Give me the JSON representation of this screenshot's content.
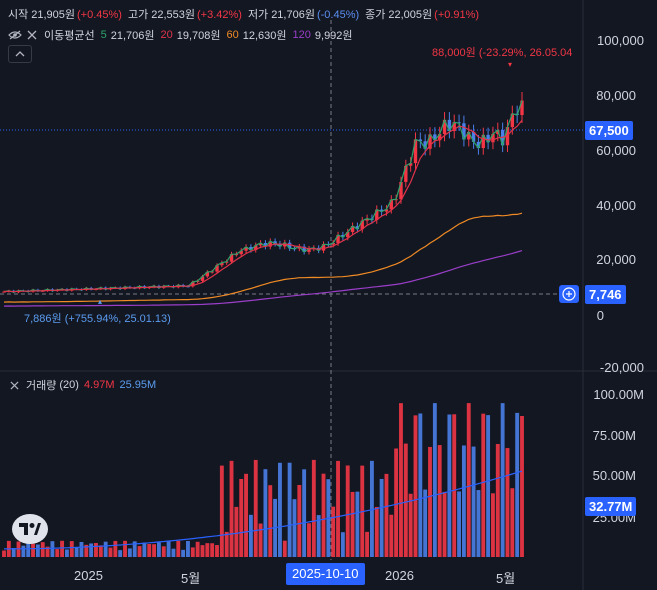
{
  "ohlc": {
    "open_label": "시작",
    "open": "21,905원",
    "open_chg": "(+0.45%)",
    "high_label": "고가",
    "high": "22,553원",
    "high_chg": "(+3.42%)",
    "low_label": "저가",
    "low": "21,706원",
    "low_chg": "(-0.45%)",
    "close_label": "종가",
    "close": "22,005원",
    "close_chg": "(+0.91%)"
  },
  "ma": {
    "title": "이동평균선",
    "p5": "5",
    "v5": "21,706원",
    "p20": "20",
    "v20": "19,708원",
    "p60": "60",
    "v60": "12,630원",
    "p120": "120",
    "v120": "9,992원"
  },
  "price_axis": [
    "100,000",
    "80,000",
    "60,000",
    "40,000",
    "20,000",
    "0",
    "-20,000"
  ],
  "volume_axis": [
    "100.00M",
    "75.00M",
    "50.00M",
    "25.00M"
  ],
  "current_price": "67,500",
  "crosshair_price": "7,746",
  "high_annotation": "88,000원 (-23.29%, 26.05.04",
  "low_annotation": "7,886원 (+755.94%, 25.01.13)",
  "volume": {
    "title": "거래량",
    "period": "(20)",
    "v1": "4.97M",
    "v2": "25.95M",
    "current": "32.77M"
  },
  "x_axis": {
    "l1": "2025",
    "l2": "5월",
    "l3": "2026",
    "l4": "5월",
    "crosshair": "2025-10-10"
  },
  "colors": {
    "up": "#f23645",
    "down": "#4a7ee8",
    "ma5": "#2ea36a",
    "ma20": "#e0334a",
    "ma60": "#f08a24",
    "ma120": "#9b3ec9",
    "accent": "#2962ff"
  },
  "chart_data": {
    "type": "candlestick",
    "series": [
      {
        "name": "이동평균선 5",
        "color": "#2ea36a"
      },
      {
        "name": "이동평균선 20",
        "color": "#e0334a"
      },
      {
        "name": "이동평균선 60",
        "color": "#f08a24"
      },
      {
        "name": "이동평균선 120",
        "color": "#9b3ec9"
      }
    ],
    "ylim": [
      -20000,
      100000
    ],
    "last_close": 67500,
    "period_high": 88000,
    "period_low": 7886
  }
}
